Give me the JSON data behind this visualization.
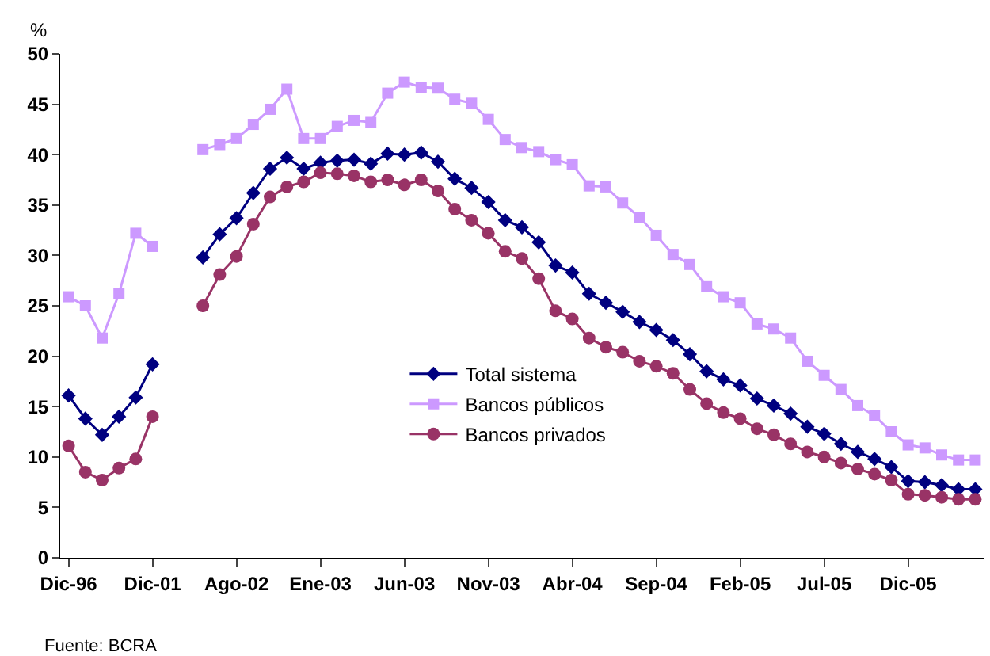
{
  "chart_data": {
    "type": "line",
    "ylabel": "%",
    "categories": [
      "Dic-96",
      null,
      null,
      null,
      null,
      "Dic-01",
      null,
      null,
      null,
      null,
      "Ago-02",
      null,
      null,
      null,
      null,
      "Ene-03",
      null,
      null,
      null,
      null,
      "Jun-03",
      null,
      null,
      null,
      null,
      "Nov-03",
      null,
      null,
      null,
      null,
      "Abr-04",
      null,
      null,
      null,
      null,
      "Sep-04",
      null,
      null,
      null,
      null,
      "Feb-05",
      null,
      null,
      null,
      null,
      "Jul-05",
      null,
      null,
      null,
      null,
      "Dic-05",
      null,
      null,
      null,
      null
    ],
    "series": [
      {
        "name": "Total sistema",
        "color": "#000080",
        "marker": "diamond",
        "values": [
          16.1,
          13.8,
          12.2,
          14.0,
          15.9,
          19.2,
          null,
          null,
          29.8,
          32.1,
          33.7,
          36.2,
          38.6,
          39.7,
          38.6,
          39.2,
          39.4,
          39.5,
          39.1,
          40.1,
          40.0,
          40.2,
          39.3,
          37.6,
          36.7,
          35.3,
          33.5,
          32.8,
          31.3,
          29.0,
          28.3,
          26.2,
          25.3,
          24.4,
          23.4,
          22.6,
          21.6,
          20.2,
          18.5,
          17.7,
          17.1,
          15.8,
          15.1,
          14.3,
          13.0,
          12.3,
          11.3,
          10.5,
          9.8,
          9.0,
          7.6,
          7.5,
          7.2,
          6.8,
          6.8
        ]
      },
      {
        "name": "Bancos públicos",
        "color": "#cc99ff",
        "marker": "square",
        "values": [
          25.9,
          25.0,
          21.8,
          26.2,
          32.2,
          30.9,
          null,
          null,
          40.5,
          41.0,
          41.6,
          43.0,
          44.5,
          46.5,
          41.6,
          41.6,
          42.8,
          43.4,
          43.2,
          46.1,
          47.2,
          46.7,
          46.6,
          45.5,
          45.1,
          43.5,
          41.5,
          40.7,
          40.3,
          39.5,
          39.0,
          36.9,
          36.8,
          35.2,
          33.8,
          32.0,
          30.1,
          29.1,
          26.9,
          25.9,
          25.3,
          23.2,
          22.7,
          21.8,
          19.5,
          18.1,
          16.7,
          15.1,
          14.1,
          12.5,
          11.2,
          10.9,
          10.2,
          9.7,
          9.7
        ]
      },
      {
        "name": "Bancos privados",
        "color": "#993366",
        "marker": "circle",
        "values": [
          11.1,
          8.5,
          7.7,
          8.9,
          9.8,
          14.0,
          null,
          null,
          25.0,
          28.1,
          29.9,
          33.1,
          35.8,
          36.8,
          37.3,
          38.2,
          38.1,
          37.9,
          37.3,
          37.5,
          37.0,
          37.5,
          36.4,
          34.6,
          33.5,
          32.2,
          30.4,
          29.7,
          27.7,
          24.5,
          23.7,
          21.8,
          20.9,
          20.4,
          19.5,
          19.0,
          18.3,
          16.7,
          15.3,
          14.4,
          13.8,
          12.8,
          12.2,
          11.3,
          10.5,
          10.0,
          9.4,
          8.8,
          8.3,
          7.7,
          6.3,
          6.2,
          6.0,
          5.8,
          5.8
        ]
      }
    ],
    "ylim": [
      0,
      50
    ],
    "yticks": [
      0,
      5,
      10,
      15,
      20,
      25,
      30,
      35,
      40,
      45,
      50
    ],
    "grid": false,
    "legend": "bottom",
    "line_style": "solid",
    "annotations": [
      "Fuente: BCRA"
    ]
  }
}
